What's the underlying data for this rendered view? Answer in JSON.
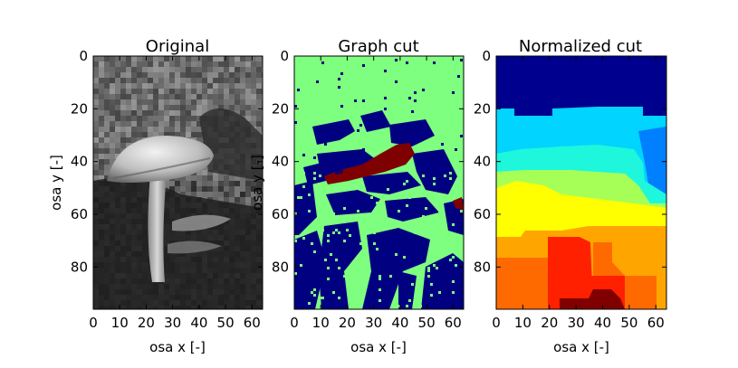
{
  "chart_data": [
    {
      "type": "heatmap",
      "title": "Original",
      "xlabel": "osa x [-]",
      "ylabel": "osa y [-]",
      "xlim": [
        0,
        64
      ],
      "ylim": [
        0,
        96
      ],
      "xticks": [
        "0",
        "10",
        "20",
        "30",
        "40",
        "50",
        "60"
      ],
      "yticks": [
        "0",
        "20",
        "40",
        "60",
        "80"
      ],
      "colormap": "gray",
      "content": "grayscale photograph of a mushroom"
    },
    {
      "type": "heatmap",
      "title": "Graph cut",
      "xlabel": "osa x [-]",
      "ylabel": "osa y [-]",
      "xlim": [
        0,
        64
      ],
      "ylim": [
        0,
        96
      ],
      "xticks": [
        "0",
        "10",
        "20",
        "30",
        "40",
        "50",
        "60"
      ],
      "yticks": [
        "0",
        "20",
        "40",
        "60",
        "80"
      ],
      "colormap": "jet",
      "colors": {
        "background": "#7fff7f",
        "class_low": "#000080",
        "class_high": "#7f0000"
      }
    },
    {
      "type": "heatmap",
      "title": "Normalized cut",
      "xlabel": "osa x [-]",
      "ylabel": "",
      "xlim": [
        0,
        64
      ],
      "ylim": [
        0,
        96
      ],
      "xticks": [
        "0",
        "10",
        "20",
        "30",
        "40",
        "50",
        "60"
      ],
      "yticks": [
        "0",
        "20",
        "40",
        "60",
        "80"
      ],
      "colormap": "jet",
      "regions": [
        {
          "label": 1,
          "color": "#00008f",
          "y": [
            0,
            20
          ]
        },
        {
          "label": 2,
          "color": "#00d4ff",
          "y": [
            20,
            33
          ]
        },
        {
          "label": 3,
          "color": "#1ef7dc",
          "y": [
            33,
            40
          ]
        },
        {
          "label": 4,
          "color": "#a6ff57",
          "y": [
            40,
            50
          ]
        },
        {
          "label": 5,
          "color": "#ffff00",
          "y": [
            50,
            63
          ]
        },
        {
          "label": 6,
          "color": "#ffa500",
          "y": [
            63,
            75
          ]
        },
        {
          "label": 7,
          "color": "#ff6a00",
          "y": [
            75,
            96
          ]
        },
        {
          "label": 8,
          "color": "#ff2000",
          "y": [
            67,
            92
          ]
        },
        {
          "label": 9,
          "color": "#800000",
          "y": [
            88,
            96
          ]
        }
      ]
    }
  ]
}
